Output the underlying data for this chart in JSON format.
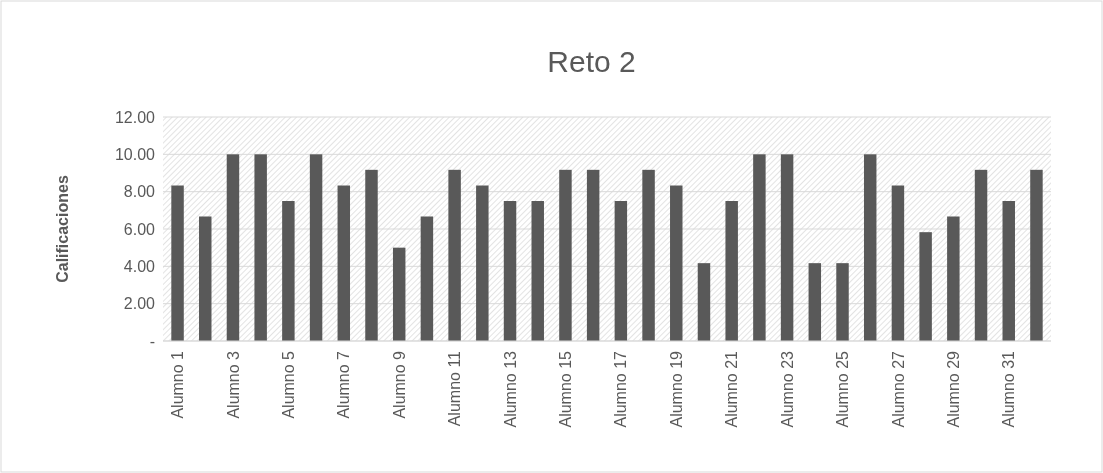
{
  "chart_data": {
    "type": "bar",
    "title": "Reto 2",
    "ylabel": "Calificaciones",
    "categories": [
      "Alumno 1",
      null,
      "Alumno 3",
      null,
      "Alumno 5",
      null,
      "Alumno 7",
      null,
      "Alumno 9",
      null,
      "Alumno 11",
      null,
      "Alumno 13",
      null,
      "Alumno 15",
      null,
      "Alumno 17",
      null,
      "Alumno 19",
      null,
      "Alumno 21",
      null,
      "Alumno 23",
      null,
      "Alumno 25",
      null,
      "Alumno 27",
      null,
      "Alumno 29",
      null,
      "Alumno 31",
      null
    ],
    "values": [
      8.33,
      6.67,
      10,
      10,
      7.5,
      10,
      8.33,
      9.17,
      5,
      6.67,
      9.17,
      8.33,
      7.5,
      7.5,
      9.17,
      9.17,
      7.5,
      9.17,
      8.33,
      4.17,
      7.5,
      10,
      10,
      4.17,
      4.17,
      10,
      8.33,
      5.83,
      6.67,
      9.17,
      7.5,
      9.17
    ],
    "color": "#595959",
    "ylim": [
      0,
      12
    ],
    "yticks": [
      {
        "value": 0,
        "label": "-"
      },
      {
        "value": 2,
        "label": "2.00"
      },
      {
        "value": 4,
        "label": "4.00"
      },
      {
        "value": 6,
        "label": "6.00"
      },
      {
        "value": 8,
        "label": "8.00"
      },
      {
        "value": 10,
        "label": "10.00"
      },
      {
        "value": 12,
        "label": "12.00"
      }
    ],
    "grid": "y"
  }
}
